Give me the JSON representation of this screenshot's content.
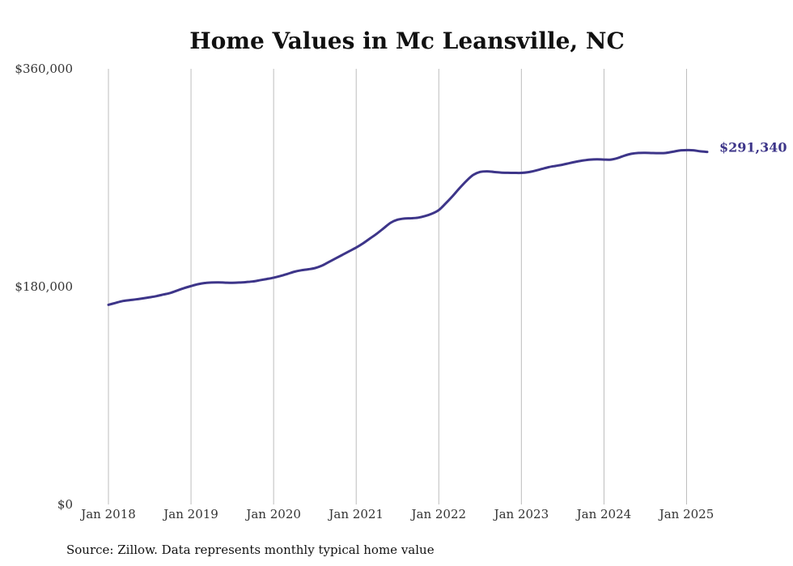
{
  "chart_data": {
    "type": "line",
    "title": "Home Values in Mc Leansville, NC",
    "source": "Source: Zillow. Data represents monthly typical home value",
    "ylim": [
      0,
      360000
    ],
    "yticks": [
      {
        "value": 0,
        "label": "$0"
      },
      {
        "value": 180000,
        "label": "$180,000"
      },
      {
        "value": 360000,
        "label": "$360,000"
      }
    ],
    "xticks": [
      {
        "value": "2018-01",
        "label": "Jan 2018"
      },
      {
        "value": "2019-01",
        "label": "Jan 2019"
      },
      {
        "value": "2020-01",
        "label": "Jan 2020"
      },
      {
        "value": "2021-01",
        "label": "Jan 2021"
      },
      {
        "value": "2022-01",
        "label": "Jan 2022"
      },
      {
        "value": "2023-01",
        "label": "Jan 2023"
      },
      {
        "value": "2024-01",
        "label": "Jan 2024"
      },
      {
        "value": "2025-01",
        "label": "Jan 2025"
      }
    ],
    "xlim": [
      "2018-01",
      "2025-04"
    ],
    "grid": {
      "vertical": true,
      "horizontal": false
    },
    "line_color": "#3d3589",
    "end_label": "$291,340",
    "series": [
      {
        "x": [
          "2018-01",
          "2018-02",
          "2018-03",
          "2018-04",
          "2018-05",
          "2018-06",
          "2018-07",
          "2018-08",
          "2018-09",
          "2018-10",
          "2018-11",
          "2018-12",
          "2019-01",
          "2019-02",
          "2019-03",
          "2019-04",
          "2019-05",
          "2019-06",
          "2019-07",
          "2019-08",
          "2019-09",
          "2019-10",
          "2019-11",
          "2019-12",
          "2020-01",
          "2020-02",
          "2020-03",
          "2020-04",
          "2020-05",
          "2020-06",
          "2020-07",
          "2020-08",
          "2020-09",
          "2020-10",
          "2020-11",
          "2020-12",
          "2021-01",
          "2021-02",
          "2021-03",
          "2021-04",
          "2021-05",
          "2021-06",
          "2021-07",
          "2021-08",
          "2021-09",
          "2021-10",
          "2021-11",
          "2021-12",
          "2022-01",
          "2022-02",
          "2022-03",
          "2022-04",
          "2022-05",
          "2022-06",
          "2022-07",
          "2022-08",
          "2022-09",
          "2022-10",
          "2022-11",
          "2022-12",
          "2023-01",
          "2023-02",
          "2023-03",
          "2023-04",
          "2023-05",
          "2023-06",
          "2023-07",
          "2023-08",
          "2023-09",
          "2023-10",
          "2023-11",
          "2023-12",
          "2024-01",
          "2024-02",
          "2024-03",
          "2024-04",
          "2024-05",
          "2024-06",
          "2024-07",
          "2024-08",
          "2024-09",
          "2024-10",
          "2024-11",
          "2024-12",
          "2025-01",
          "2025-02",
          "2025-03",
          "2025-04"
        ],
        "values": [
          165000,
          166500,
          168000,
          168800,
          169500,
          170300,
          171200,
          172200,
          173500,
          174800,
          176800,
          178800,
          180500,
          182000,
          183000,
          183400,
          183500,
          183300,
          183200,
          183400,
          183800,
          184300,
          185300,
          186300,
          187400,
          188800,
          190500,
          192300,
          193500,
          194300,
          195300,
          197300,
          200300,
          203300,
          206300,
          209300,
          212300,
          215800,
          219800,
          223800,
          228300,
          232800,
          235300,
          236300,
          236500,
          237000,
          238300,
          240300,
          243300,
          248800,
          254800,
          261300,
          267300,
          272300,
          274800,
          275300,
          274800,
          274300,
          274100,
          274000,
          274000,
          274600,
          275800,
          277300,
          278800,
          279800,
          280800,
          282100,
          283300,
          284300,
          285000,
          285200,
          285000,
          285000,
          286300,
          288300,
          289800,
          290500,
          290600,
          290400,
          290300,
          290500,
          291500,
          292500,
          292800,
          292700,
          291800,
          291340
        ]
      }
    ]
  }
}
